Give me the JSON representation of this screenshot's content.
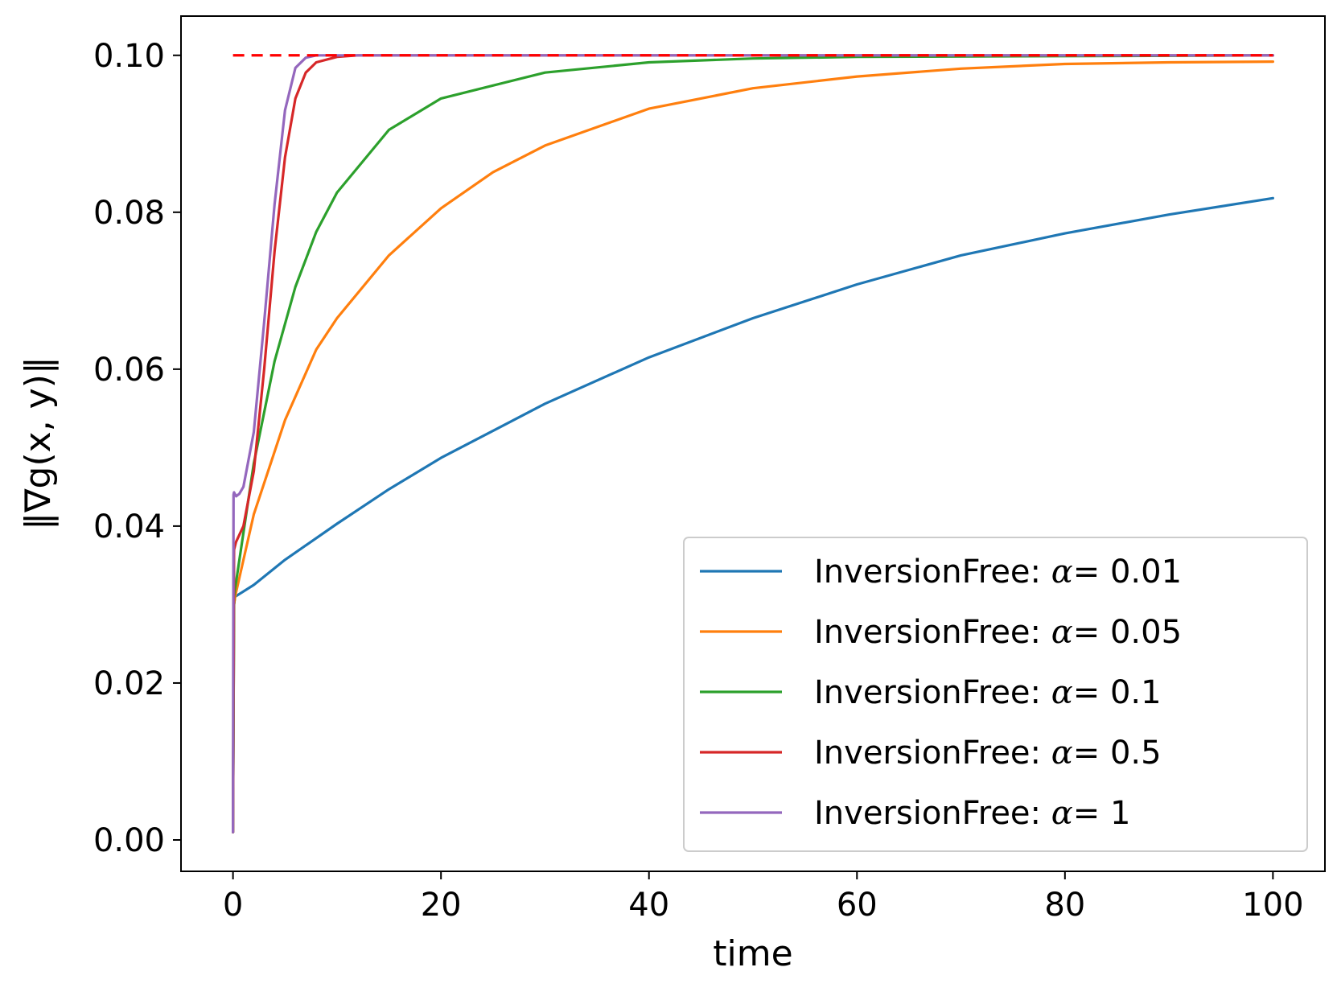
{
  "chart_data": {
    "type": "line",
    "xlabel": "time",
    "ylabel": "‖∇g(x, y)‖",
    "xlim": [
      -5,
      105
    ],
    "ylim": [
      -0.004,
      0.105
    ],
    "xticks": [
      0,
      20,
      40,
      60,
      80,
      100
    ],
    "xtick_labels": [
      "0",
      "20",
      "40",
      "60",
      "80",
      "100"
    ],
    "yticks": [
      0.0,
      0.02,
      0.04,
      0.06,
      0.08,
      0.1
    ],
    "ytick_labels": [
      "0.00",
      "0.02",
      "0.04",
      "0.06",
      "0.08",
      "0.10"
    ],
    "grid": false,
    "legend_position": "lower-right",
    "reference_line": {
      "style": "dashed",
      "color": "#ff0000",
      "x": [
        0,
        100
      ],
      "y": [
        0.1,
        0.1
      ]
    },
    "series": [
      {
        "name": "InversionFree: α= 0.01",
        "label_prefix": "InversionFree: ",
        "label_symbol": "α",
        "label_suffix": "= 0.01",
        "color": "#1f77b4",
        "x": [
          0,
          0.1,
          0.2,
          2,
          5,
          10,
          15,
          20,
          30,
          40,
          50,
          60,
          70,
          80,
          90,
          100
        ],
        "y": [
          0.001,
          0.03,
          0.031,
          0.0325,
          0.0357,
          0.0403,
          0.0447,
          0.0487,
          0.0556,
          0.0615,
          0.0665,
          0.0708,
          0.0745,
          0.0773,
          0.0797,
          0.0818
        ]
      },
      {
        "name": "InversionFree: α= 0.05",
        "label_prefix": "InversionFree: ",
        "label_symbol": "α",
        "label_suffix": "= 0.05",
        "color": "#ff7f0e",
        "x": [
          0,
          0.1,
          0.2,
          2,
          5,
          8,
          10,
          15,
          20,
          25,
          30,
          40,
          50,
          60,
          70,
          80,
          90,
          100
        ],
        "y": [
          0.001,
          0.03,
          0.031,
          0.0415,
          0.0535,
          0.0625,
          0.0665,
          0.0745,
          0.0805,
          0.0851,
          0.0885,
          0.0932,
          0.0958,
          0.0973,
          0.0983,
          0.0989,
          0.0991,
          0.0992
        ]
      },
      {
        "name": "InversionFree: α= 0.1",
        "label_prefix": "InversionFree: ",
        "label_symbol": "α",
        "label_suffix": "= 0.1",
        "color": "#2ca02c",
        "x": [
          0,
          0.1,
          0.2,
          2,
          4,
          6,
          8,
          10,
          15,
          20,
          30,
          40,
          50,
          60,
          100
        ],
        "y": [
          0.001,
          0.031,
          0.032,
          0.048,
          0.061,
          0.0705,
          0.0775,
          0.0825,
          0.0905,
          0.0945,
          0.0978,
          0.0991,
          0.0996,
          0.0998,
          0.1
        ]
      },
      {
        "name": "InversionFree: α= 0.5",
        "label_prefix": "InversionFree: ",
        "label_symbol": "α",
        "label_suffix": "= 0.5",
        "color": "#d62728",
        "x": [
          0,
          0.1,
          0.3,
          1,
          2,
          3,
          4,
          5,
          6,
          7,
          8,
          10,
          12,
          15,
          100
        ],
        "y": [
          0.001,
          0.037,
          0.038,
          0.04,
          0.047,
          0.06,
          0.075,
          0.087,
          0.0945,
          0.0978,
          0.0991,
          0.0998,
          0.1,
          0.1,
          0.1
        ]
      },
      {
        "name": "InversionFree: α= 1",
        "label_prefix": "InversionFree: ",
        "label_symbol": "α",
        "label_suffix": "= 1",
        "color": "#9467bd",
        "x": [
          0,
          0.05,
          0.1,
          0.3,
          0.6,
          1,
          2,
          3,
          4,
          5,
          6,
          7,
          8,
          100
        ],
        "y": [
          0.001,
          0.044,
          0.0443,
          0.0438,
          0.0441,
          0.045,
          0.052,
          0.066,
          0.081,
          0.093,
          0.0984,
          0.0997,
          0.1,
          0.1
        ]
      }
    ]
  }
}
